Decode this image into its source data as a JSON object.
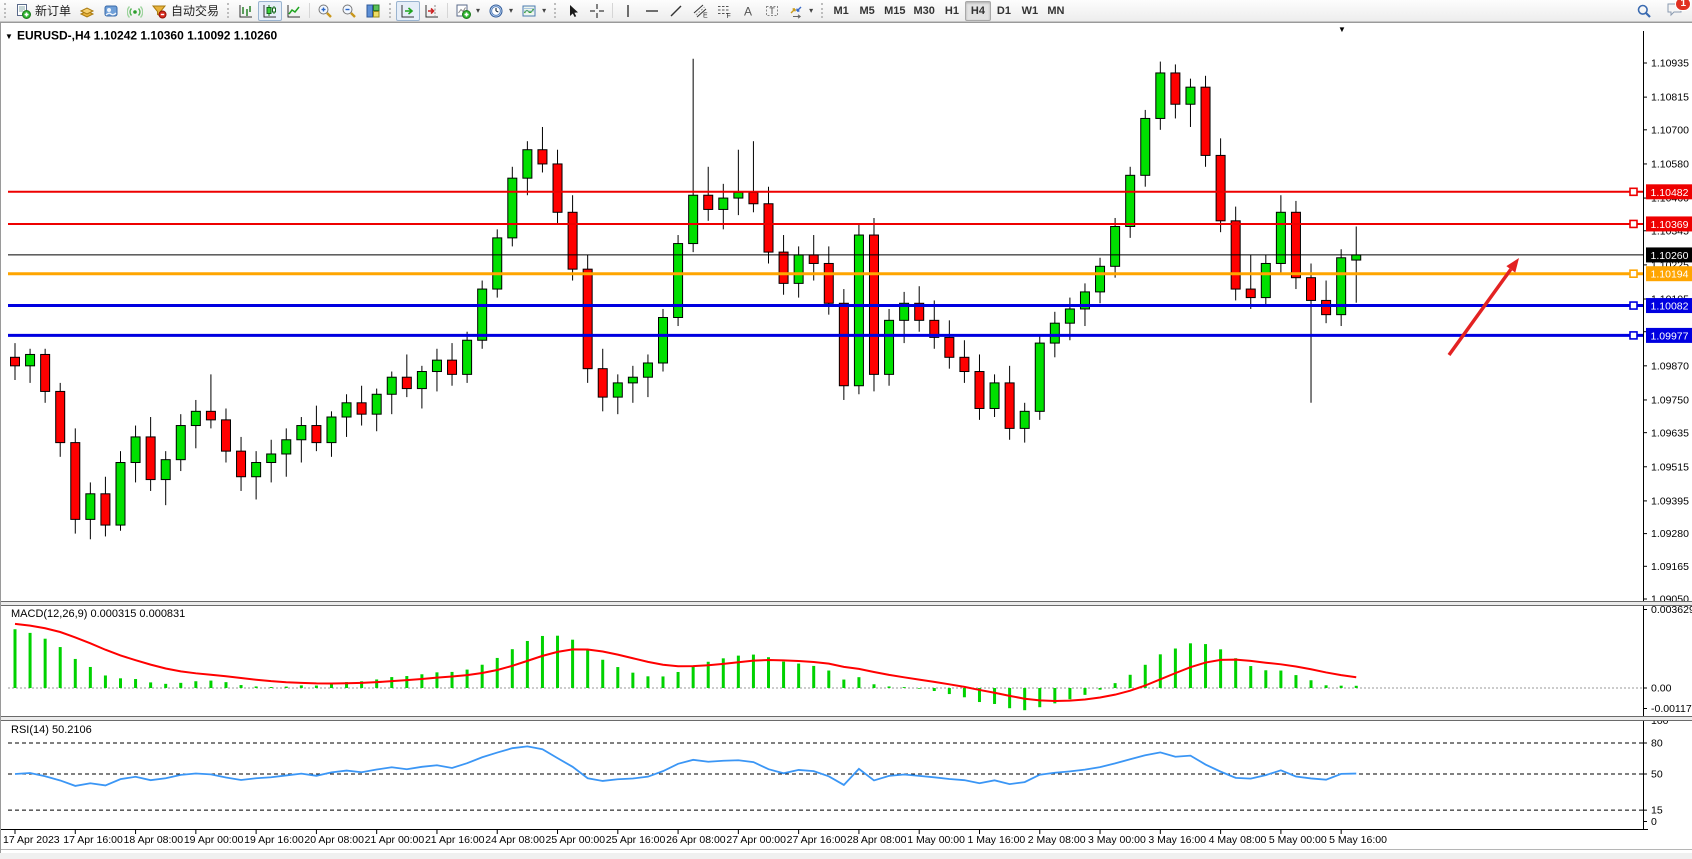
{
  "window": {
    "title_symbol": "EURUSD-,H4",
    "title_ohlc": "1.10242 1.10360 1.10092 1.10260",
    "dropdown_marker": "▼"
  },
  "toolbar": {
    "new_order_label": "新订单",
    "autotrading_label": "自动交易",
    "icon_glyphs": {
      "text": "A",
      "label": "T",
      "channel": "E",
      "fibo": "F"
    },
    "timeframes": [
      {
        "label": "M1",
        "active": false
      },
      {
        "label": "M5",
        "active": false
      },
      {
        "label": "M15",
        "active": false
      },
      {
        "label": "M30",
        "active": false
      },
      {
        "label": "H1",
        "active": false
      },
      {
        "label": "H4",
        "active": true
      },
      {
        "label": "D1",
        "active": false
      },
      {
        "label": "W1",
        "active": false
      },
      {
        "label": "MN",
        "active": false
      }
    ],
    "chat_badge": "1"
  },
  "price_axis": {
    "ticks": [
      "1.10935",
      "1.10815",
      "1.10700",
      "1.10580",
      "1.10460",
      "1.10345",
      "1.10225",
      "1.10105",
      "1.09990",
      "1.09870",
      "1.09750",
      "1.09635",
      "1.09515",
      "1.09395",
      "1.09280",
      "1.09165",
      "1.09050"
    ]
  },
  "hlines": [
    {
      "price": 1.10482,
      "label": "1.10482",
      "color": "#ee0000",
      "width": 2
    },
    {
      "price": 1.10369,
      "label": "1.10369",
      "color": "#ee0000",
      "width": 2
    },
    {
      "price": 1.10194,
      "label": "1.10194",
      "color": "#ffa500",
      "width": 3
    },
    {
      "price": 1.10082,
      "label": "1.10082",
      "color": "#0000e0",
      "width": 3
    },
    {
      "price": 1.09977,
      "label": "1.09977",
      "color": "#0000e0",
      "width": 3
    }
  ],
  "current_price": {
    "value": 1.1026,
    "label": "1.10260",
    "color": "#000000"
  },
  "time_axis": {
    "labels": [
      "17 Apr 2023",
      "17 Apr 16:00",
      "18 Apr 08:00",
      "19 Apr 00:00",
      "19 Apr 16:00",
      "20 Apr 08:00",
      "21 Apr 00:00",
      "21 Apr 16:00",
      "24 Apr 08:00",
      "25 Apr 00:00",
      "25 Apr 16:00",
      "26 Apr 08:00",
      "27 Apr 00:00",
      "27 Apr 16:00",
      "28 Apr 08:00",
      "1 May 00:00",
      "1 May 16:00",
      "2 May 08:00",
      "3 May 00:00",
      "3 May 16:00",
      "4 May 08:00",
      "5 May 00:00",
      "5 May 16:00"
    ]
  },
  "indicators": {
    "macd": {
      "label": "MACD(12,26,9)",
      "values": "0.000315 0.000831",
      "axis_labels": [
        "0.003629",
        "0.00",
        "-0.001171"
      ],
      "histogram_color": "#00d200",
      "signal_color": "#ff0000"
    },
    "rsi": {
      "label": "RSI(14)",
      "value": "50.2106",
      "levels": [
        80,
        50,
        15
      ],
      "axis_labels": [
        "100",
        "80",
        "50",
        "15",
        "0"
      ],
      "line_color": "#3b96f5"
    }
  },
  "annotation": {
    "arrow": {
      "color": "#e32222"
    }
  },
  "chart_data": {
    "type": "candlestick",
    "symbol": "EURUSD",
    "timeframe": "H4",
    "title": "EURUSD-,H4",
    "ohlc_current": {
      "open": 1.10242,
      "high": 1.1036,
      "low": 1.10092,
      "close": 1.1026
    },
    "y_range": [
      1.0905,
      1.10935
    ],
    "bull_color": "#00e000",
    "bear_color": "#ff0000",
    "candles": [
      [
        1.099,
        1.0995,
        1.0982,
        1.0987
      ],
      [
        1.0987,
        1.0993,
        1.0981,
        1.0991
      ],
      [
        1.0991,
        1.0993,
        1.0974,
        1.0978
      ],
      [
        1.0978,
        1.0981,
        1.0955,
        1.096
      ],
      [
        1.096,
        1.0965,
        1.0928,
        1.0933
      ],
      [
        1.0933,
        1.0946,
        1.0926,
        1.0942
      ],
      [
        1.0942,
        1.0948,
        1.0927,
        1.0931
      ],
      [
        1.0931,
        1.0957,
        1.0929,
        1.0953
      ],
      [
        1.0953,
        1.0966,
        1.0946,
        1.0962
      ],
      [
        1.0962,
        1.0969,
        1.0943,
        1.0947
      ],
      [
        1.0947,
        1.0957,
        1.0938,
        1.0954
      ],
      [
        1.0954,
        1.097,
        1.095,
        1.0966
      ],
      [
        1.0966,
        1.0975,
        1.0958,
        1.0971
      ],
      [
        1.0971,
        1.0984,
        1.0965,
        1.0968
      ],
      [
        1.0968,
        1.0972,
        1.0953,
        1.0957
      ],
      [
        1.0957,
        1.0962,
        1.0943,
        1.0948
      ],
      [
        1.0948,
        1.0957,
        1.094,
        1.0953
      ],
      [
        1.0953,
        1.0961,
        1.0946,
        1.0956
      ],
      [
        1.0956,
        1.0965,
        1.0948,
        1.0961
      ],
      [
        1.0961,
        1.0969,
        1.0953,
        1.0966
      ],
      [
        1.0966,
        1.0973,
        1.0957,
        1.096
      ],
      [
        1.096,
        1.0971,
        1.0955,
        1.0969
      ],
      [
        1.0969,
        1.0977,
        1.0962,
        1.0974
      ],
      [
        1.0974,
        1.098,
        1.0966,
        1.097
      ],
      [
        1.097,
        1.0979,
        1.0964,
        1.0977
      ],
      [
        1.0977,
        1.0985,
        1.097,
        1.0983
      ],
      [
        1.0983,
        1.0991,
        1.0976,
        1.0979
      ],
      [
        1.0979,
        1.0987,
        1.0972,
        1.0985
      ],
      [
        1.0985,
        1.0993,
        1.0978,
        1.0989
      ],
      [
        1.0989,
        1.0995,
        1.098,
        1.0984
      ],
      [
        1.0984,
        1.0999,
        1.0981,
        1.0996
      ],
      [
        1.0996,
        1.1017,
        1.0993,
        1.1014
      ],
      [
        1.1014,
        1.1035,
        1.1011,
        1.1032
      ],
      [
        1.1032,
        1.1057,
        1.1029,
        1.1053
      ],
      [
        1.1053,
        1.1066,
        1.1047,
        1.1063
      ],
      [
        1.1063,
        1.1071,
        1.1055,
        1.1058
      ],
      [
        1.1058,
        1.1063,
        1.1037,
        1.1041
      ],
      [
        1.1041,
        1.1047,
        1.1017,
        1.1021
      ],
      [
        1.1021,
        1.1026,
        1.0981,
        1.0986
      ],
      [
        1.0986,
        1.0993,
        1.0971,
        1.0976
      ],
      [
        1.0976,
        1.0984,
        1.097,
        1.0981
      ],
      [
        1.0981,
        1.0987,
        1.0974,
        1.0983
      ],
      [
        1.0983,
        1.0991,
        1.0976,
        1.0988
      ],
      [
        1.0988,
        1.1007,
        1.0985,
        1.1004
      ],
      [
        1.1004,
        1.1033,
        1.1001,
        1.103
      ],
      [
        1.103,
        1.1095,
        1.1027,
        1.1047
      ],
      [
        1.1047,
        1.1057,
        1.1038,
        1.1042
      ],
      [
        1.1042,
        1.1051,
        1.1035,
        1.1046
      ],
      [
        1.1046,
        1.1063,
        1.104,
        1.1048
      ],
      [
        1.1048,
        1.1066,
        1.1041,
        1.1044
      ],
      [
        1.1044,
        1.105,
        1.1023,
        1.1027
      ],
      [
        1.1027,
        1.1033,
        1.1012,
        1.1016
      ],
      [
        1.1016,
        1.1029,
        1.1011,
        1.1026
      ],
      [
        1.1026,
        1.1033,
        1.1017,
        1.1023
      ],
      [
        1.1023,
        1.1029,
        1.1005,
        1.1009
      ],
      [
        1.1009,
        1.1014,
        1.0975,
        1.098
      ],
      [
        1.098,
        1.1037,
        1.0977,
        1.1033
      ],
      [
        1.1033,
        1.1039,
        1.0978,
        1.0984
      ],
      [
        1.0984,
        1.1007,
        1.098,
        1.1003
      ],
      [
        1.1003,
        1.1013,
        1.0995,
        1.1009
      ],
      [
        1.1009,
        1.1015,
        1.0999,
        1.1003
      ],
      [
        1.1003,
        1.101,
        1.0993,
        1.0997
      ],
      [
        1.0997,
        1.1003,
        1.0986,
        1.099
      ],
      [
        1.099,
        1.0996,
        1.0981,
        1.0985
      ],
      [
        1.0985,
        1.0991,
        1.0968,
        1.0972
      ],
      [
        1.0972,
        1.0984,
        1.0969,
        1.0981
      ],
      [
        1.0981,
        1.0987,
        1.0961,
        1.0965
      ],
      [
        1.0965,
        1.0974,
        1.096,
        1.0971
      ],
      [
        1.0971,
        1.0998,
        1.0968,
        1.0995
      ],
      [
        1.0995,
        1.1006,
        1.099,
        1.1002
      ],
      [
        1.1002,
        1.1011,
        1.0996,
        1.1007
      ],
      [
        1.1007,
        1.1016,
        1.1001,
        1.1013
      ],
      [
        1.1013,
        1.1025,
        1.1009,
        1.1022
      ],
      [
        1.1022,
        1.1039,
        1.1018,
        1.1036
      ],
      [
        1.1036,
        1.1057,
        1.1032,
        1.1054
      ],
      [
        1.1054,
        1.1077,
        1.105,
        1.1074
      ],
      [
        1.1074,
        1.1094,
        1.107,
        1.109
      ],
      [
        1.109,
        1.1093,
        1.1074,
        1.1079
      ],
      [
        1.1079,
        1.1088,
        1.1071,
        1.1085
      ],
      [
        1.1085,
        1.1089,
        1.1057,
        1.1061
      ],
      [
        1.1061,
        1.1067,
        1.1034,
        1.1038
      ],
      [
        1.1038,
        1.1043,
        1.101,
        1.1014
      ],
      [
        1.1014,
        1.1026,
        1.1007,
        1.1011
      ],
      [
        1.1011,
        1.1026,
        1.1008,
        1.1023
      ],
      [
        1.1023,
        1.1047,
        1.1019,
        1.1041
      ],
      [
        1.1041,
        1.1045,
        1.1014,
        1.1018
      ],
      [
        1.1018,
        1.1023,
        1.0974,
        1.101
      ],
      [
        1.101,
        1.1017,
        1.1002,
        1.1005
      ],
      [
        1.1005,
        1.1028,
        1.1001,
        1.1025
      ],
      [
        1.10242,
        1.1036,
        1.10092,
        1.1026
      ]
    ]
  }
}
